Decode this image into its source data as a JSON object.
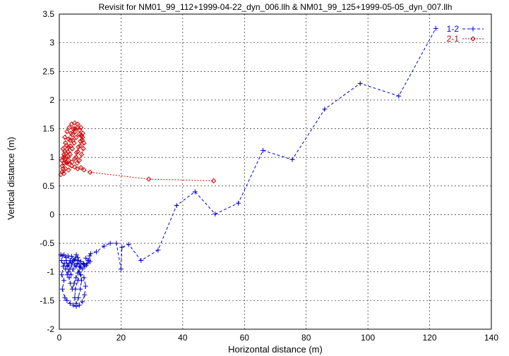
{
  "chart_data": {
    "type": "line",
    "title": "Revisit for NM01_99_112+1999-04-22_dyn_006.llh & NM01_99_125+1999-05-05_dyn_007.llh",
    "xlabel": "Horizontal distance (m)",
    "ylabel": "Vertical distance (m)",
    "xlim": [
      0,
      140
    ],
    "ylim": [
      -2,
      3.5
    ],
    "xticks": [
      0,
      20,
      40,
      60,
      80,
      100,
      120,
      140
    ],
    "yticks": [
      -2,
      -1.5,
      -1,
      -0.5,
      0,
      0.5,
      1,
      1.5,
      2,
      2.5,
      3,
      3.5
    ],
    "grid": true,
    "legend_position": "top-right",
    "series": [
      {
        "name": "1-2",
        "color": "#0000cc",
        "marker": "plus",
        "line": "dashed",
        "points": [
          [
            0.5,
            -0.7
          ],
          [
            1,
            -0.72
          ],
          [
            1.5,
            -0.7
          ],
          [
            2.2,
            -0.75
          ],
          [
            2.8,
            -0.72
          ],
          [
            3.5,
            -0.8
          ],
          [
            4,
            -0.73
          ],
          [
            5,
            -0.78
          ],
          [
            5.5,
            -0.7
          ],
          [
            6,
            -0.75
          ],
          [
            7,
            -0.82
          ],
          [
            8,
            -0.87
          ],
          [
            9,
            -0.85
          ],
          [
            10,
            -0.82
          ],
          [
            9.8,
            -0.72
          ],
          [
            10.2,
            -0.68
          ],
          [
            12,
            -0.65
          ],
          [
            14.5,
            -0.55
          ],
          [
            16.5,
            -0.5
          ],
          [
            18.5,
            -0.5
          ],
          [
            20,
            -0.95
          ],
          [
            20.3,
            -0.57
          ],
          [
            22.5,
            -0.52
          ],
          [
            26.5,
            -0.8
          ],
          [
            32,
            -0.62
          ],
          [
            38,
            0.16
          ],
          [
            44,
            0.4
          ],
          [
            50.5,
            0.01
          ],
          [
            58,
            0.2
          ],
          [
            66,
            1.12
          ],
          [
            75.5,
            0.96
          ],
          [
            86,
            1.84
          ],
          [
            97.5,
            2.29
          ],
          [
            110,
            2.07
          ],
          [
            122,
            3.25
          ]
        ],
        "loop": [
          [
            0.7,
            -0.8
          ],
          [
            1.3,
            -0.9
          ],
          [
            0.8,
            -1.05
          ],
          [
            1.5,
            -1.15
          ],
          [
            1,
            -1.3
          ],
          [
            1.8,
            -1.45
          ],
          [
            2.5,
            -1.5
          ],
          [
            3.5,
            -1.55
          ],
          [
            4.5,
            -1.58
          ],
          [
            5.5,
            -1.6
          ],
          [
            6.5,
            -1.58
          ],
          [
            7.5,
            -1.52
          ],
          [
            8.2,
            -1.4
          ],
          [
            8.5,
            -1.25
          ],
          [
            8,
            -1.1
          ],
          [
            7,
            -1.05
          ],
          [
            6,
            -1.15
          ],
          [
            5.2,
            -1.3
          ],
          [
            5,
            -1.45
          ],
          [
            5.5,
            -1.55
          ],
          [
            6.2,
            -1.45
          ],
          [
            6.8,
            -1.3
          ],
          [
            7.2,
            -1.15
          ],
          [
            6.5,
            -1.0
          ],
          [
            5.5,
            -0.9
          ],
          [
            4.5,
            -0.95
          ],
          [
            3.8,
            -1.05
          ],
          [
            3,
            -1.0
          ],
          [
            2.5,
            -0.9
          ],
          [
            3.2,
            -0.85
          ],
          [
            4.2,
            -0.82
          ],
          [
            5,
            -0.88
          ],
          [
            5.8,
            -0.85
          ],
          [
            6.5,
            -0.9
          ],
          [
            7.5,
            -0.95
          ],
          [
            8.3,
            -0.9
          ],
          [
            7.8,
            -0.85
          ],
          [
            6.8,
            -0.92
          ],
          [
            6,
            -1.02
          ],
          [
            5.4,
            -1.1
          ],
          [
            4.8,
            -1.2
          ],
          [
            4.2,
            -1.3
          ],
          [
            3.6,
            -1.2
          ],
          [
            3.2,
            -1.1
          ],
          [
            2.6,
            -1.05
          ],
          [
            2,
            -0.95
          ],
          [
            1.6,
            -0.85
          ],
          [
            2.2,
            -0.8
          ],
          [
            2.8,
            -0.88
          ],
          [
            3.4,
            -0.95
          ],
          [
            4.0,
            -0.88
          ],
          [
            4.6,
            -0.8
          ],
          [
            5.2,
            -0.78
          ],
          [
            6.2,
            -0.8
          ],
          [
            7.0,
            -0.86
          ],
          [
            8.8,
            -0.88
          ],
          [
            9.5,
            -0.8
          ],
          [
            8.6,
            -0.76
          ]
        ]
      },
      {
        "name": "2-1",
        "color": "#cc0000",
        "marker": "diamond",
        "line": "dotted",
        "points": [
          [
            0.5,
            0.7
          ],
          [
            1,
            0.75
          ],
          [
            1.5,
            0.72
          ],
          [
            2,
            0.8
          ],
          [
            3,
            0.78
          ],
          [
            4,
            0.85
          ],
          [
            5,
            0.83
          ],
          [
            6,
            0.8
          ],
          [
            7,
            0.82
          ],
          [
            8,
            0.78
          ],
          [
            10,
            0.74
          ],
          [
            29,
            0.62
          ],
          [
            50,
            0.59
          ]
        ],
        "loop": [
          [
            1,
            0.85
          ],
          [
            0.8,
            0.95
          ],
          [
            1.5,
            1.05
          ],
          [
            1.2,
            1.15
          ],
          [
            2,
            1.25
          ],
          [
            1.8,
            1.35
          ],
          [
            2.5,
            1.45
          ],
          [
            3.2,
            1.52
          ],
          [
            4,
            1.58
          ],
          [
            5,
            1.6
          ],
          [
            6,
            1.58
          ],
          [
            7,
            1.52
          ],
          [
            7.6,
            1.42
          ],
          [
            7.4,
            1.3
          ],
          [
            6.8,
            1.2
          ],
          [
            6,
            1.1
          ],
          [
            5.5,
            1.0
          ],
          [
            5.8,
            0.9
          ],
          [
            6.5,
            0.95
          ],
          [
            7.2,
            1.05
          ],
          [
            7.8,
            1.15
          ],
          [
            8,
            1.25
          ],
          [
            7.5,
            1.35
          ],
          [
            6.5,
            1.4
          ],
          [
            5.5,
            1.35
          ],
          [
            4.8,
            1.25
          ],
          [
            4.2,
            1.15
          ],
          [
            3.5,
            1.05
          ],
          [
            3,
            0.95
          ],
          [
            2.5,
            0.9
          ],
          [
            2,
            0.98
          ],
          [
            2.8,
            1.1
          ],
          [
            3.6,
            1.2
          ],
          [
            4.4,
            1.3
          ],
          [
            5.2,
            1.45
          ],
          [
            4.5,
            1.5
          ],
          [
            3.8,
            1.42
          ],
          [
            3,
            1.32
          ],
          [
            2.4,
            1.2
          ],
          [
            1.8,
            1.1
          ],
          [
            1.4,
            1.0
          ],
          [
            2.2,
            0.92
          ],
          [
            3.2,
            0.88
          ],
          [
            4.2,
            0.92
          ],
          [
            5,
            0.98
          ],
          [
            5.6,
            1.08
          ],
          [
            6.2,
            1.18
          ],
          [
            6.8,
            1.28
          ],
          [
            7.2,
            1.38
          ],
          [
            6.6,
            1.48
          ],
          [
            5.8,
            1.52
          ],
          [
            5,
            1.5
          ],
          [
            4.3,
            1.4
          ],
          [
            3.6,
            1.3
          ],
          [
            3,
            1.18
          ],
          [
            2.6,
            1.02
          ],
          [
            1.6,
            0.9
          ],
          [
            1.2,
            0.8
          ]
        ]
      }
    ]
  }
}
